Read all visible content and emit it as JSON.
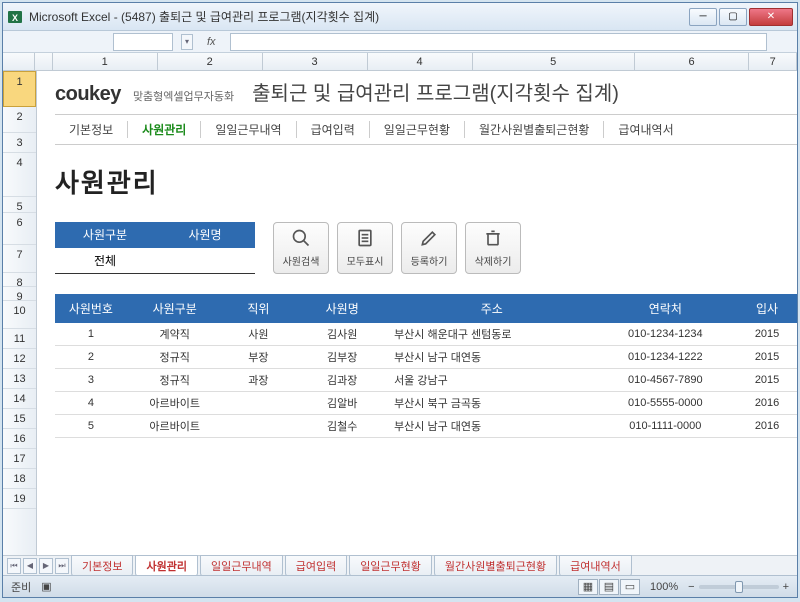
{
  "window": {
    "app": "Microsoft Excel",
    "title": "(5487) 출퇴근 및 급여관리 프로그램(지각횟수 집계)"
  },
  "formula": {
    "fx": "fx"
  },
  "columns": [
    "1",
    "2",
    "3",
    "4",
    "5",
    "6",
    "7"
  ],
  "rows": [
    "1",
    "2",
    "3",
    "4",
    "5",
    "6",
    "7",
    "8",
    "9",
    "10",
    "11",
    "12",
    "13",
    "14",
    "15",
    "16",
    "17",
    "18",
    "19"
  ],
  "brand": {
    "name": "coukey",
    "sub": "맞춤형엑셀업무자동화"
  },
  "doc_title": "출퇴근 및 급여관리 프로그램(지각횟수 집계)",
  "nav": {
    "items": [
      "기본정보",
      "사원관리",
      "일일근무내역",
      "급여입력",
      "일일근무현황",
      "월간사원별출퇴근현황",
      "급여내역서"
    ],
    "active_index": 1
  },
  "section_title": "사원관리",
  "filter": {
    "headers": [
      "사원구분",
      "사원명"
    ],
    "values": [
      "전체",
      ""
    ]
  },
  "actions": [
    {
      "key": "search",
      "label": "사원검색"
    },
    {
      "key": "showall",
      "label": "모두표시"
    },
    {
      "key": "register",
      "label": "등록하기"
    },
    {
      "key": "delete",
      "label": "삭제하기"
    }
  ],
  "table": {
    "headers": [
      "사원번호",
      "사원구분",
      "직위",
      "사원명",
      "주소",
      "연락처",
      "입사"
    ],
    "rows": [
      {
        "no": "1",
        "type": "계약직",
        "pos": "사원",
        "name": "김사원",
        "addr": "부산시 해운대구 센텀동로",
        "phone": "010-1234-1234",
        "hire": "2015"
      },
      {
        "no": "2",
        "type": "정규직",
        "pos": "부장",
        "name": "김부장",
        "addr": "부산시 남구 대연동",
        "phone": "010-1234-1222",
        "hire": "2015"
      },
      {
        "no": "3",
        "type": "정규직",
        "pos": "과장",
        "name": "김과장",
        "addr": "서울 강남구",
        "phone": "010-4567-7890",
        "hire": "2015"
      },
      {
        "no": "4",
        "type": "아르바이트",
        "pos": "",
        "name": "김알바",
        "addr": "부산시 북구 금곡동",
        "phone": "010-5555-0000",
        "hire": "2016"
      },
      {
        "no": "5",
        "type": "아르바이트",
        "pos": "",
        "name": "김철수",
        "addr": "부산시 남구 대연동",
        "phone": "010-1111-0000",
        "hire": "2016"
      }
    ]
  },
  "sheet_tabs": [
    "기본정보",
    "사원관리",
    "일일근무내역",
    "급여입력",
    "일일근무현황",
    "월간사원별출퇴근현황",
    "급여내역서"
  ],
  "sheet_active_index": 1,
  "status": {
    "ready": "준비",
    "zoom": "100%"
  },
  "colors": {
    "accent": "#2e6bb0",
    "nav_active": "#1a8a1a"
  }
}
